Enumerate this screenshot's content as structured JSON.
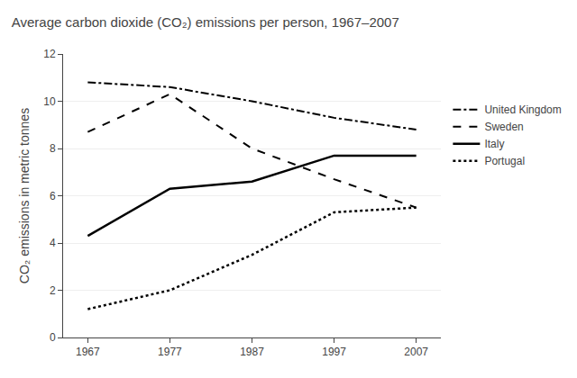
{
  "chart_data": {
    "type": "line",
    "title": "Average carbon dioxide (CO₂) emissions per person, 1967–2007",
    "ylabel": "CO₂ emissions in metric tonnes",
    "x": [
      1967,
      1977,
      1987,
      1997,
      2007
    ],
    "series": [
      {
        "name": "United Kingdom",
        "values": [
          10.8,
          10.6,
          10.0,
          9.3,
          8.8
        ],
        "line_style": "dashdot"
      },
      {
        "name": "Sweden",
        "values": [
          8.7,
          10.3,
          8.0,
          6.7,
          5.5
        ],
        "line_style": "dashed"
      },
      {
        "name": "Italy",
        "values": [
          4.3,
          6.3,
          6.6,
          7.7,
          7.7
        ],
        "line_style": "solid"
      },
      {
        "name": "Portugal",
        "values": [
          1.2,
          2.0,
          3.5,
          5.3,
          5.5
        ],
        "line_style": "dotted"
      }
    ],
    "color": "#000000",
    "xlim": [
      1964,
      2010
    ],
    "xticks": [
      1967,
      1977,
      1987,
      1997,
      2007
    ],
    "ylim": [
      0,
      12
    ],
    "yticks": [
      0,
      2,
      4,
      6,
      8,
      10,
      12
    ],
    "grid": "y",
    "legend": "right"
  }
}
